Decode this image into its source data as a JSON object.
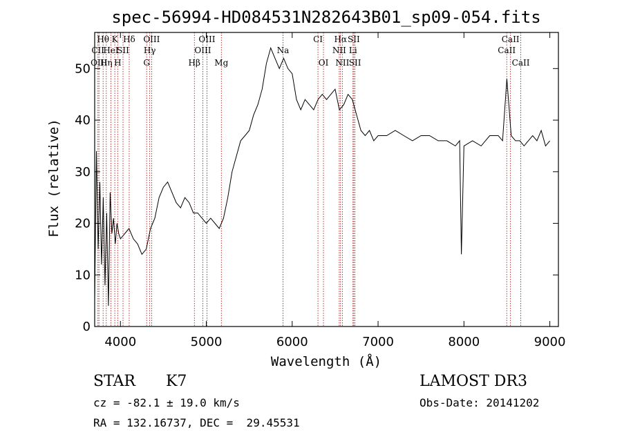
{
  "chart_data": {
    "type": "line",
    "title": "spec-56994-HD084531N282643B01_sp09-054.fits",
    "xlabel": "Wavelength (Å)",
    "ylabel": "Flux (relative)",
    "xlim": [
      3700,
      9100
    ],
    "ylim": [
      0,
      57
    ],
    "x_ticks": [
      4000,
      5000,
      6000,
      7000,
      8000,
      9000
    ],
    "y_ticks": [
      0,
      10,
      20,
      30,
      40,
      50
    ],
    "grid": false,
    "line_color": "#000000",
    "marker_color": "#aa0000",
    "series": [
      {
        "x": [
          3700,
          3720,
          3740,
          3760,
          3780,
          3800,
          3820,
          3840,
          3860,
          3880,
          3900,
          3920,
          3940,
          3960,
          3980,
          4000,
          4050,
          4100,
          4150,
          4200,
          4250,
          4300,
          4350,
          4400,
          4450,
          4500,
          4550,
          4600,
          4650,
          4700,
          4750,
          4800,
          4850,
          4900,
          4950,
          5000,
          5050,
          5100,
          5150,
          5200,
          5250,
          5300,
          5350,
          5400,
          5450,
          5500,
          5550,
          5600,
          5650,
          5700,
          5750,
          5800,
          5850,
          5900,
          5950,
          6000,
          6050,
          6100,
          6150,
          6200,
          6250,
          6300,
          6350,
          6400,
          6450,
          6500,
          6550,
          6600,
          6650,
          6700,
          6750,
          6800,
          6850,
          6900,
          6950,
          7000,
          7100,
          7200,
          7300,
          7400,
          7500,
          7600,
          7700,
          7800,
          7900,
          7950,
          7970,
          8000,
          8100,
          8200,
          8300,
          8400,
          8450,
          8500,
          8550,
          8600,
          8650,
          8700,
          8750,
          8800,
          8850,
          8900,
          8950,
          9000
        ],
        "values": [
          5,
          34,
          15,
          28,
          12,
          25,
          8,
          22,
          4,
          26,
          18,
          21,
          16,
          20,
          18,
          17,
          18,
          19,
          17,
          16,
          14,
          15,
          19,
          21,
          25,
          27,
          28,
          26,
          24,
          23,
          25,
          24,
          22,
          22,
          21,
          20,
          21,
          20,
          19,
          21,
          25,
          30,
          33,
          36,
          37,
          38,
          41,
          43,
          46,
          51,
          54,
          52,
          50,
          52,
          50,
          49,
          44,
          42,
          44,
          43,
          42,
          44,
          45,
          44,
          45,
          46,
          42,
          43,
          45,
          44,
          41,
          38,
          37,
          38,
          36,
          37,
          37,
          38,
          37,
          36,
          37,
          37,
          36,
          36,
          35,
          36,
          14,
          35,
          36,
          35,
          37,
          37,
          36,
          48,
          37,
          36,
          36,
          35,
          36,
          37,
          36,
          38,
          35,
          36
        ]
      }
    ],
    "spectral_lines": [
      {
        "label": "Hθ",
        "x": 3798,
        "row": 1
      },
      {
        "label": "CII",
        "x": 3738,
        "row": 2
      },
      {
        "label": "OIII",
        "x": 3750,
        "row": 3
      },
      {
        "label": "K",
        "x": 3934,
        "row": 1
      },
      {
        "label": "HeI",
        "x": 3889,
        "row": 2
      },
      {
        "label": "Hη",
        "x": 3835,
        "row": 3
      },
      {
        "label": "SII",
        "x": 4030,
        "row": 2
      },
      {
        "label": "H",
        "x": 3968,
        "row": 3
      },
      {
        "label": "Hδ",
        "x": 4102,
        "row": 1
      },
      {
        "label": "OIII",
        "x": 4363,
        "row": 1
      },
      {
        "label": "Hγ",
        "x": 4341,
        "row": 2
      },
      {
        "label": "G",
        "x": 4305,
        "row": 3
      },
      {
        "label": "OIII",
        "x": 5007,
        "row": 1
      },
      {
        "label": "OIII",
        "x": 4959,
        "row": 2
      },
      {
        "label": "Hβ",
        "x": 4861,
        "row": 3
      },
      {
        "label": "Mg",
        "x": 5175,
        "row": 3
      },
      {
        "label": "Na",
        "x": 5893,
        "row": 2
      },
      {
        "label": "CI",
        "x": 6300,
        "row": 1
      },
      {
        "label": "OI",
        "x": 6364,
        "row": 3
      },
      {
        "label": "Hα",
        "x": 6563,
        "row": 1
      },
      {
        "label": "SII",
        "x": 6717,
        "row": 1
      },
      {
        "label": "NII",
        "x": 6548,
        "row": 2
      },
      {
        "label": "Li",
        "x": 6708,
        "row": 2
      },
      {
        "label": "NII",
        "x": 6584,
        "row": 3
      },
      {
        "label": "SII",
        "x": 6731,
        "row": 3
      },
      {
        "label": "CaII",
        "x": 8542,
        "row": 1
      },
      {
        "label": "CaII",
        "x": 8498,
        "row": 2
      },
      {
        "label": "CaII",
        "x": 8662,
        "row": 3
      }
    ]
  },
  "info": {
    "class": "STAR",
    "subclass": "K7",
    "survey": "LAMOST DR3",
    "cz": "cz = -82.1 ± 19.0 km/s",
    "obs_date": "Obs-Date: 20141202",
    "coords": "RA = 132.16737, DEC =  29.45531"
  }
}
